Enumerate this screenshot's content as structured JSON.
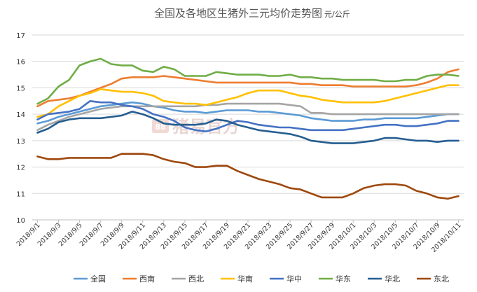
{
  "chart_data": {
    "type": "line",
    "title": "全国及各地区生猪外三元均价走势图",
    "unit": "元/公斤",
    "watermark_text": "猪易官方",
    "xlabel": "",
    "ylabel": "",
    "ylim": [
      10,
      17
    ],
    "yticks": [
      10,
      11,
      12,
      13,
      14,
      15,
      16,
      17
    ],
    "grid": "horizontal",
    "legend_position": "bottom",
    "x": [
      "2018/9/1",
      "2018/9/2",
      "2018/9/3",
      "2018/9/4",
      "2018/9/5",
      "2018/9/6",
      "2018/9/7",
      "2018/9/8",
      "2018/9/9",
      "2018/9/10",
      "2018/9/11",
      "2018/9/12",
      "2018/9/13",
      "2018/9/14",
      "2018/9/15",
      "2018/9/16",
      "2018/9/17",
      "2018/9/18",
      "2018/9/19",
      "2018/9/20",
      "2018/9/21",
      "2018/9/22",
      "2018/9/23",
      "2018/9/24",
      "2018/9/25",
      "2018/9/26",
      "2018/9/27",
      "2018/9/28",
      "2018/9/29",
      "2018/9/30",
      "2018/10/1",
      "2018/10/2",
      "2018/10/3",
      "2018/10/4",
      "2018/10/5",
      "2018/10/6",
      "2018/10/7",
      "2018/10/8",
      "2018/10/9",
      "2018/10/10",
      "2018/10/11"
    ],
    "xtick_labels": [
      "2018/9/1",
      "2018/9/3",
      "2018/9/5",
      "2018/9/7",
      "2018/9/9",
      "2018/9/11",
      "2018/9/13",
      "2018/9/15",
      "2018/9/17",
      "2018/9/19",
      "2018/9/21",
      "2018/9/23",
      "2018/9/25",
      "2018/9/27",
      "2018/9/29",
      "2018/10/1",
      "2018/10/3",
      "2018/10/5",
      "2018/10/7",
      "2018/10/9",
      "2018/10/11"
    ],
    "series": [
      {
        "name": "全国",
        "color": "#5b9bd5",
        "values": [
          13.65,
          13.75,
          13.9,
          14.0,
          14.1,
          14.2,
          14.3,
          14.35,
          14.4,
          14.45,
          14.4,
          14.3,
          14.25,
          14.15,
          14.1,
          14.1,
          14.05,
          14.1,
          14.15,
          14.15,
          14.15,
          14.1,
          14.1,
          14.05,
          14.0,
          13.95,
          13.85,
          13.8,
          13.75,
          13.75,
          13.75,
          13.8,
          13.8,
          13.85,
          13.85,
          13.85,
          13.85,
          13.9,
          13.95,
          14.0,
          14.0
        ]
      },
      {
        "name": "西南",
        "color": "#ed7d31",
        "values": [
          14.3,
          14.5,
          14.55,
          14.6,
          14.7,
          14.85,
          15.0,
          15.15,
          15.35,
          15.4,
          15.4,
          15.4,
          15.45,
          15.4,
          15.35,
          15.3,
          15.25,
          15.2,
          15.2,
          15.2,
          15.2,
          15.2,
          15.2,
          15.2,
          15.2,
          15.15,
          15.15,
          15.1,
          15.1,
          15.1,
          15.05,
          15.05,
          15.05,
          15.05,
          15.05,
          15.05,
          15.1,
          15.2,
          15.35,
          15.6,
          15.7
        ]
      },
      {
        "name": "西北",
        "color": "#a5a5a5",
        "values": [
          13.4,
          13.6,
          13.75,
          13.9,
          14.0,
          14.1,
          14.2,
          14.25,
          14.3,
          14.3,
          14.3,
          14.3,
          14.3,
          14.3,
          14.3,
          14.3,
          14.35,
          14.35,
          14.4,
          14.4,
          14.4,
          14.4,
          14.4,
          14.4,
          14.35,
          14.3,
          14.05,
          14.05,
          14.0,
          14.0,
          14.0,
          14.0,
          14.0,
          14.0,
          14.0,
          14.0,
          14.0,
          14.0,
          14.0,
          14.0,
          14.0
        ]
      },
      {
        "name": "华南",
        "color": "#ffc000",
        "values": [
          13.9,
          14.0,
          14.3,
          14.5,
          14.7,
          14.8,
          14.95,
          14.9,
          14.85,
          14.85,
          14.8,
          14.7,
          14.5,
          14.45,
          14.4,
          14.4,
          14.35,
          14.45,
          14.55,
          14.65,
          14.8,
          14.9,
          14.9,
          14.9,
          14.8,
          14.7,
          14.65,
          14.55,
          14.5,
          14.45,
          14.45,
          14.45,
          14.45,
          14.5,
          14.6,
          14.7,
          14.8,
          14.9,
          15.0,
          15.1,
          15.1
        ]
      },
      {
        "name": "华中",
        "color": "#4472c4",
        "values": [
          13.8,
          14.0,
          14.05,
          14.1,
          14.2,
          14.5,
          14.45,
          14.45,
          14.35,
          14.3,
          14.2,
          14.0,
          13.9,
          13.75,
          13.5,
          13.4,
          13.35,
          13.45,
          13.6,
          13.75,
          13.7,
          13.6,
          13.55,
          13.5,
          13.5,
          13.45,
          13.4,
          13.4,
          13.4,
          13.4,
          13.45,
          13.5,
          13.55,
          13.6,
          13.6,
          13.55,
          13.55,
          13.6,
          13.65,
          13.75,
          13.75
        ]
      },
      {
        "name": "华东",
        "color": "#70ad47",
        "values": [
          14.4,
          14.6,
          15.05,
          15.3,
          15.85,
          16.0,
          16.1,
          15.9,
          15.85,
          15.85,
          15.65,
          15.6,
          15.8,
          15.7,
          15.45,
          15.45,
          15.45,
          15.6,
          15.55,
          15.5,
          15.5,
          15.5,
          15.45,
          15.45,
          15.5,
          15.4,
          15.4,
          15.35,
          15.35,
          15.3,
          15.3,
          15.3,
          15.3,
          15.25,
          15.25,
          15.3,
          15.3,
          15.45,
          15.5,
          15.5,
          15.45
        ]
      },
      {
        "name": "华北",
        "color": "#255e91",
        "values": [
          13.3,
          13.45,
          13.7,
          13.8,
          13.85,
          13.85,
          13.85,
          13.9,
          13.95,
          14.1,
          14.0,
          13.85,
          13.65,
          13.6,
          13.6,
          13.6,
          13.65,
          13.8,
          13.75,
          13.6,
          13.5,
          13.4,
          13.35,
          13.3,
          13.25,
          13.15,
          13.0,
          12.95,
          12.9,
          12.9,
          12.9,
          12.95,
          13.0,
          13.1,
          13.1,
          13.05,
          13.0,
          13.0,
          12.95,
          13.0,
          13.0
        ]
      },
      {
        "name": "东北",
        "color": "#9e480e",
        "values": [
          12.4,
          12.3,
          12.3,
          12.35,
          12.35,
          12.35,
          12.35,
          12.35,
          12.5,
          12.5,
          12.5,
          12.45,
          12.3,
          12.2,
          12.15,
          12.0,
          12.0,
          12.05,
          12.05,
          11.85,
          11.7,
          11.55,
          11.45,
          11.35,
          11.2,
          11.15,
          11.0,
          10.85,
          10.85,
          10.85,
          11.0,
          11.2,
          11.3,
          11.35,
          11.35,
          11.3,
          11.1,
          11.0,
          10.85,
          10.8,
          10.9
        ]
      }
    ]
  }
}
